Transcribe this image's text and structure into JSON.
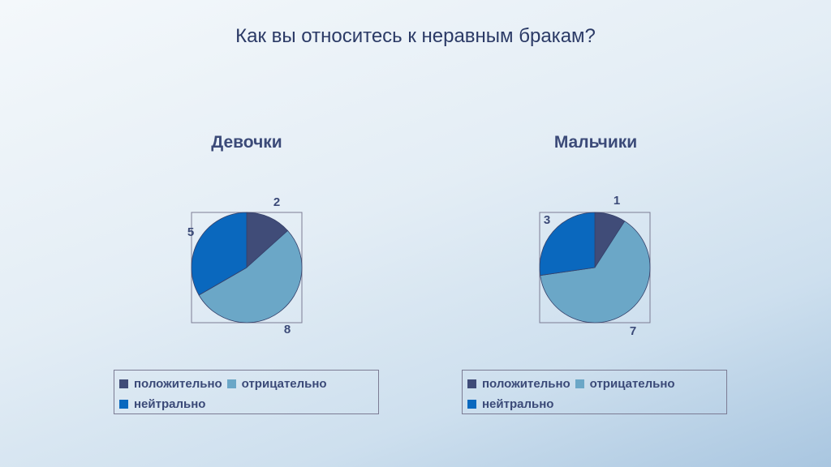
{
  "title": "Как вы относитесь к неравным бракам?",
  "chart_data": [
    {
      "type": "pie",
      "title": "Девочки",
      "categories": [
        "положительно",
        "отрицательно",
        "нейтрально"
      ],
      "values": [
        2,
        8,
        5
      ],
      "colors": [
        "#404c78",
        "#6ba7c7",
        "#0a68be"
      ],
      "legend_position": "bottom"
    },
    {
      "type": "pie",
      "title": "Мальчики",
      "categories": [
        "положительно",
        "отрицательно",
        "нейтрально"
      ],
      "values": [
        1,
        7,
        3
      ],
      "colors": [
        "#404c78",
        "#6ba7c7",
        "#0a68be"
      ],
      "legend_position": "bottom"
    }
  ]
}
